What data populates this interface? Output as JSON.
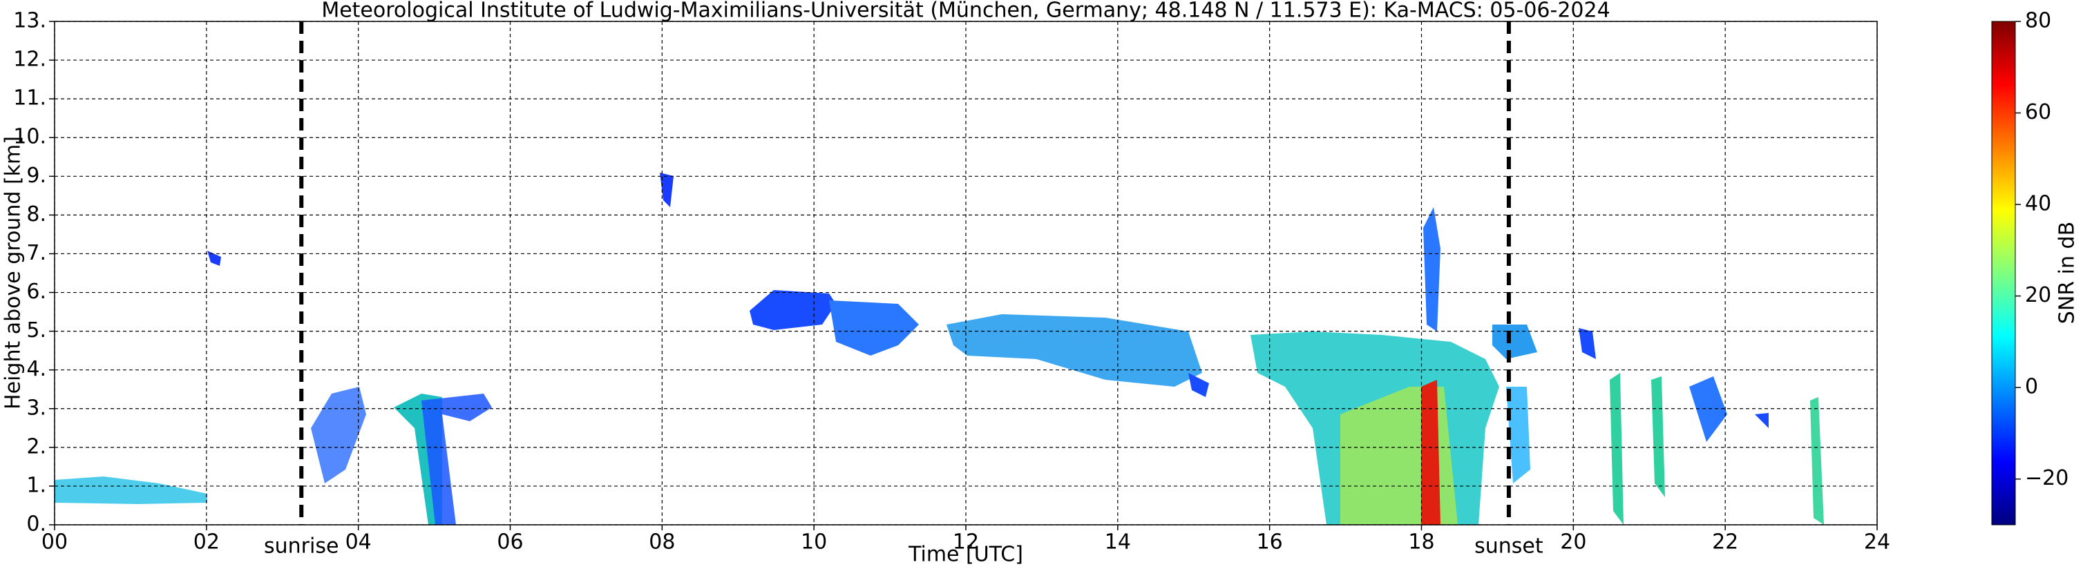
{
  "chart_data": {
    "type": "heatmap",
    "title": "Meteorological Institute of Ludwig-Maximilians-Universität (München, Germany; 48.148 N / 11.573 E):    Ka-MACS: 05-06-2024",
    "x_label": "Time [UTC]",
    "y_label": "Height above ground [km]",
    "xlim": [
      0,
      24
    ],
    "xticks": [
      {
        "value": 0,
        "label": "00"
      },
      {
        "value": 2,
        "label": "02"
      },
      {
        "value": 4,
        "label": "04"
      },
      {
        "value": 6,
        "label": "06"
      },
      {
        "value": 8,
        "label": "08"
      },
      {
        "value": 10,
        "label": "10"
      },
      {
        "value": 12,
        "label": "12"
      },
      {
        "value": 14,
        "label": "14"
      },
      {
        "value": 16,
        "label": "16"
      },
      {
        "value": 18,
        "label": "18"
      },
      {
        "value": 20,
        "label": "20"
      },
      {
        "value": 22,
        "label": "22"
      },
      {
        "value": 24,
        "label": "24"
      }
    ],
    "ylim": [
      0,
      13
    ],
    "yticks": [
      {
        "value": 0,
        "label": "0."
      },
      {
        "value": 1,
        "label": "1."
      },
      {
        "value": 2,
        "label": "2."
      },
      {
        "value": 3,
        "label": "3."
      },
      {
        "value": 4,
        "label": "4."
      },
      {
        "value": 5,
        "label": "5."
      },
      {
        "value": 6,
        "label": "6."
      },
      {
        "value": 7,
        "label": "7."
      },
      {
        "value": 8,
        "label": "8."
      },
      {
        "value": 9,
        "label": "9."
      },
      {
        "value": 10,
        "label": "10."
      },
      {
        "value": 11,
        "label": "11."
      },
      {
        "value": 12,
        "label": "12."
      },
      {
        "value": 13,
        "label": "13."
      }
    ],
    "grid": true,
    "annotations": [
      {
        "label": "sunrise",
        "x": 3.25
      },
      {
        "label": "sunset",
        "x": 19.15
      }
    ],
    "colorbar": {
      "label": "SNR in dB",
      "colormap": "jet",
      "lim": [
        -30,
        80
      ],
      "ticks": [
        {
          "value": -20,
          "label": "−20"
        },
        0,
        20,
        40,
        60,
        80
      ]
    }
  }
}
